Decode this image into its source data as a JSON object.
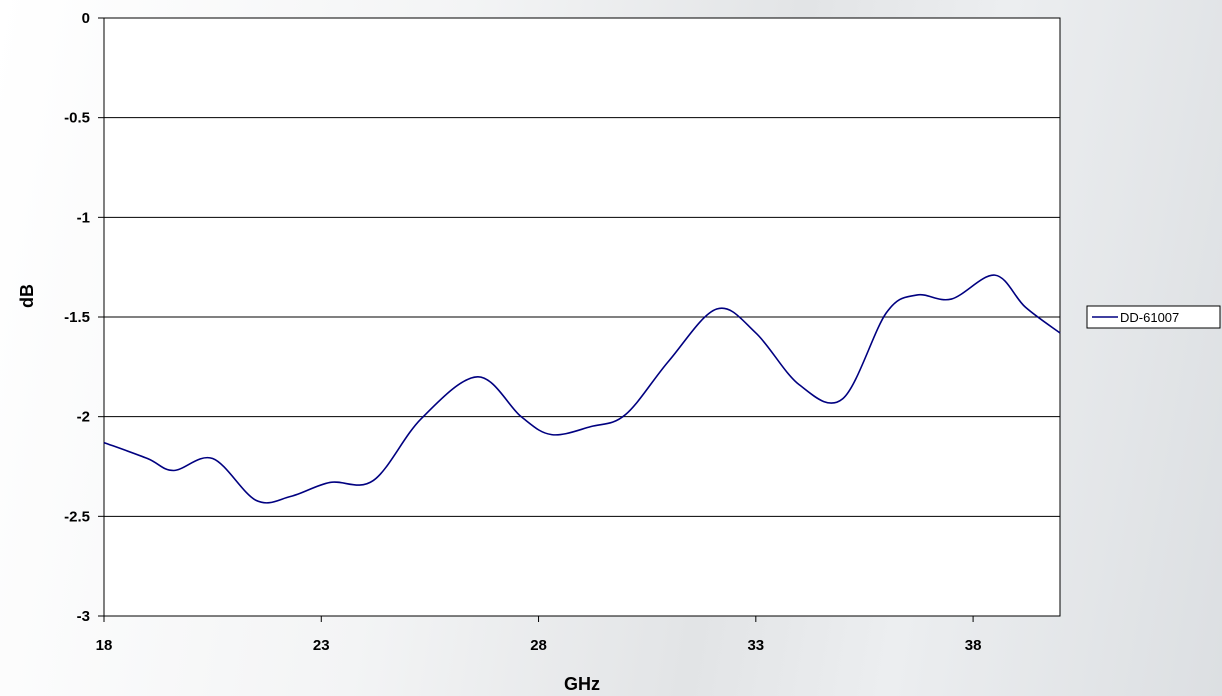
{
  "chart_data": {
    "type": "line",
    "title": "",
    "xlabel": "GHz",
    "ylabel": "dB",
    "xlim": [
      18,
      40
    ],
    "ylim": [
      -3,
      0
    ],
    "x_ticks": [
      18,
      23,
      28,
      33,
      38
    ],
    "y_ticks": [
      0,
      -0.5,
      -1,
      -1.5,
      -2,
      -2.5,
      -3
    ],
    "y_tick_labels": [
      "0",
      "-0.5",
      "-1",
      "-1.5",
      "-2",
      "-2.5",
      "-3"
    ],
    "grid": "horizontal",
    "legend": "right",
    "series": [
      {
        "name": "DD-61007",
        "color": "#000080",
        "x": [
          18,
          19,
          19.6,
          20.5,
          21.5,
          22.3,
          23.2,
          24.2,
          25.3,
          26.6,
          27.6,
          28.3,
          29.2,
          30,
          31,
          32.1,
          33,
          34,
          35,
          36,
          36.7,
          37.5,
          38.5,
          39.2,
          40
        ],
        "y": [
          -2.13,
          -2.21,
          -2.27,
          -2.21,
          -2.42,
          -2.4,
          -2.33,
          -2.32,
          -2.01,
          -1.8,
          -2.0,
          -2.09,
          -2.05,
          -1.99,
          -1.72,
          -1.46,
          -1.58,
          -1.84,
          -1.91,
          -1.48,
          -1.39,
          -1.41,
          -1.29,
          -1.45,
          -1.58
        ]
      }
    ]
  }
}
